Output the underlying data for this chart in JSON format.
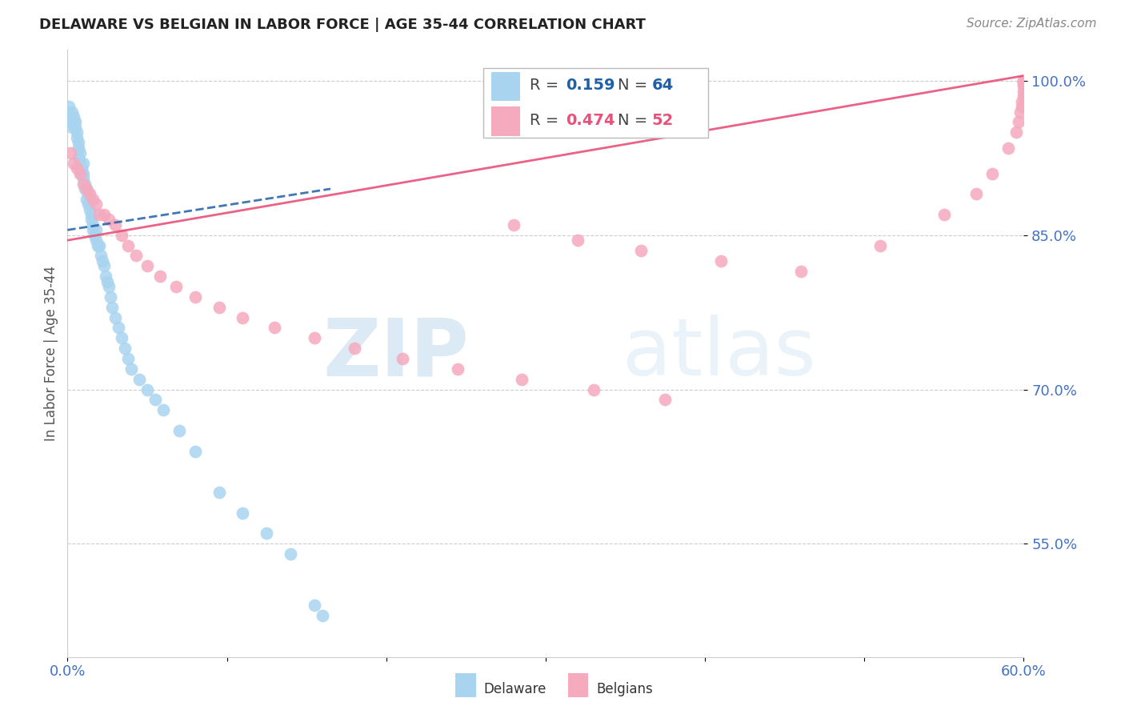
{
  "title": "DELAWARE VS BELGIAN IN LABOR FORCE | AGE 35-44 CORRELATION CHART",
  "source": "Source: ZipAtlas.com",
  "ylabel": "In Labor Force | Age 35-44",
  "xlim": [
    0.0,
    0.6
  ],
  "ylim": [
    0.44,
    1.03
  ],
  "yticks": [
    0.55,
    0.7,
    0.85,
    1.0
  ],
  "ytick_labels": [
    "55.0%",
    "70.0%",
    "85.0%",
    "100.0%"
  ],
  "xticks": [
    0.0,
    0.1,
    0.2,
    0.3,
    0.4,
    0.5,
    0.6
  ],
  "xtick_labels": [
    "0.0%",
    "",
    "",
    "",
    "",
    "",
    "60.0%"
  ],
  "watermark_zip": "ZIP",
  "watermark_atlas": "atlas",
  "blue_scatter_color": "#A8D4F0",
  "pink_scatter_color": "#F5AABE",
  "blue_line_color": "#1F5FA6",
  "pink_line_color": "#E8517A",
  "axis_color": "#4472C4",
  "grid_color": "#CCCCCC",
  "legend_r1_label": "R = ",
  "legend_r1_val": "0.159",
  "legend_r1_n_label": "  N = ",
  "legend_r1_n_val": "64",
  "legend_r2_label": "R = ",
  "legend_r2_val": "0.474",
  "legend_r2_n_label": "  N = ",
  "legend_r2_n_val": "52",
  "del_trend_x0": 0.0,
  "del_trend_x1": 0.165,
  "del_trend_y0": 0.855,
  "del_trend_y1": 0.895,
  "bel_trend_x0": 0.0,
  "bel_trend_x1": 0.6,
  "bel_trend_y0": 0.845,
  "bel_trend_y1": 1.005,
  "delaware_x": [
    0.001,
    0.002,
    0.002,
    0.003,
    0.003,
    0.004,
    0.004,
    0.005,
    0.005,
    0.006,
    0.006,
    0.007,
    0.007,
    0.007,
    0.008,
    0.008,
    0.009,
    0.009,
    0.01,
    0.01,
    0.01,
    0.011,
    0.011,
    0.012,
    0.012,
    0.013,
    0.013,
    0.014,
    0.014,
    0.015,
    0.015,
    0.016,
    0.016,
    0.017,
    0.018,
    0.018,
    0.019,
    0.02,
    0.021,
    0.022,
    0.023,
    0.024,
    0.025,
    0.026,
    0.027,
    0.028,
    0.03,
    0.032,
    0.034,
    0.036,
    0.038,
    0.04,
    0.045,
    0.05,
    0.055,
    0.06,
    0.07,
    0.08,
    0.095,
    0.11,
    0.125,
    0.14,
    0.155,
    0.16
  ],
  "delaware_y": [
    0.975,
    0.965,
    0.96,
    0.97,
    0.955,
    0.965,
    0.96,
    0.96,
    0.955,
    0.95,
    0.945,
    0.94,
    0.935,
    0.925,
    0.93,
    0.92,
    0.915,
    0.91,
    0.92,
    0.91,
    0.905,
    0.9,
    0.895,
    0.895,
    0.885,
    0.89,
    0.88,
    0.885,
    0.875,
    0.87,
    0.865,
    0.86,
    0.855,
    0.85,
    0.855,
    0.845,
    0.84,
    0.84,
    0.83,
    0.825,
    0.82,
    0.81,
    0.805,
    0.8,
    0.79,
    0.78,
    0.77,
    0.76,
    0.75,
    0.74,
    0.73,
    0.72,
    0.71,
    0.7,
    0.69,
    0.68,
    0.66,
    0.64,
    0.6,
    0.58,
    0.56,
    0.54,
    0.49,
    0.48
  ],
  "belgians_x": [
    0.002,
    0.004,
    0.006,
    0.008,
    0.01,
    0.012,
    0.014,
    0.016,
    0.018,
    0.02,
    0.023,
    0.026,
    0.03,
    0.034,
    0.038,
    0.043,
    0.05,
    0.058,
    0.068,
    0.08,
    0.095,
    0.11,
    0.13,
    0.155,
    0.18,
    0.21,
    0.245,
    0.285,
    0.33,
    0.375,
    0.28,
    0.32,
    0.36,
    0.41,
    0.46,
    0.51,
    0.55,
    0.57,
    0.58,
    0.59,
    0.595,
    0.597,
    0.598,
    0.599,
    0.599,
    0.6,
    0.6,
    0.6,
    0.6,
    0.6,
    0.6,
    0.6
  ],
  "belgians_y": [
    0.93,
    0.92,
    0.915,
    0.91,
    0.9,
    0.895,
    0.89,
    0.885,
    0.88,
    0.87,
    0.87,
    0.865,
    0.86,
    0.85,
    0.84,
    0.83,
    0.82,
    0.81,
    0.8,
    0.79,
    0.78,
    0.77,
    0.76,
    0.75,
    0.74,
    0.73,
    0.72,
    0.71,
    0.7,
    0.69,
    0.86,
    0.845,
    0.835,
    0.825,
    0.815,
    0.84,
    0.87,
    0.89,
    0.91,
    0.935,
    0.95,
    0.96,
    0.97,
    0.975,
    0.98,
    0.985,
    0.99,
    0.995,
    0.998,
    0.999,
    1.0,
    1.0
  ]
}
